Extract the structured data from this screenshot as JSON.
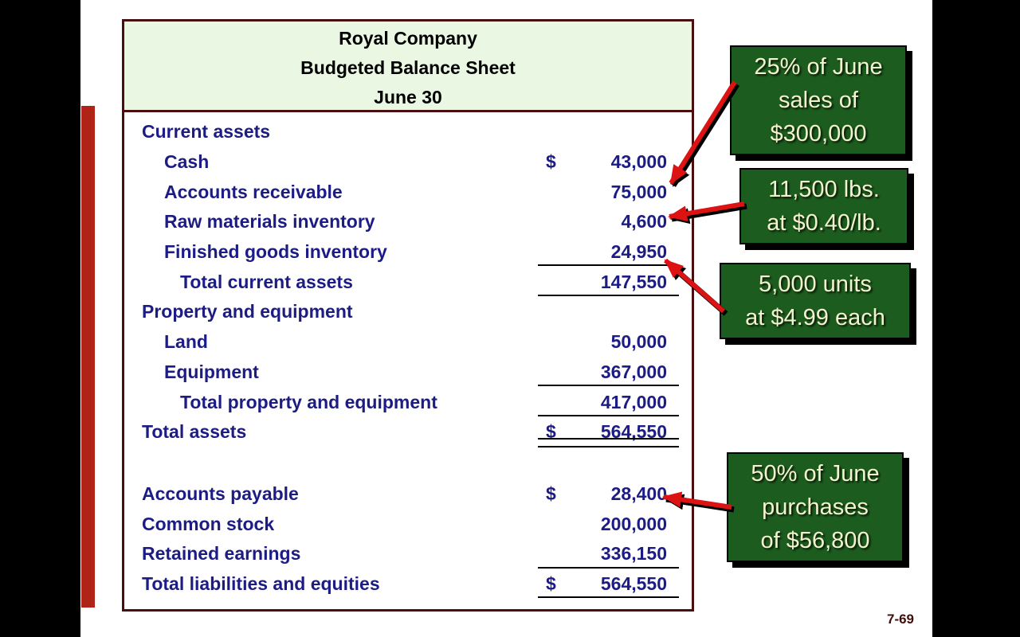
{
  "page": {
    "number_label": "7-69"
  },
  "table": {
    "title_lines": [
      "Royal Company",
      "Budgeted Balance Sheet",
      "June 30"
    ],
    "rows": [
      {
        "label": "Current assets",
        "indent": 0,
        "dollar": "",
        "value": "",
        "underline": "none"
      },
      {
        "label": "Cash",
        "indent": 1,
        "dollar": "$",
        "value": "43,000",
        "underline": "none"
      },
      {
        "label": "Accounts receivable",
        "indent": 1,
        "dollar": "",
        "value": "75,000",
        "underline": "none"
      },
      {
        "label": "Raw materials inventory",
        "indent": 1,
        "dollar": "",
        "value": "4,600",
        "underline": "none"
      },
      {
        "label": "Finished goods inventory",
        "indent": 1,
        "dollar": "",
        "value": "24,950",
        "underline": "single"
      },
      {
        "label": "Total current assets",
        "indent": 2,
        "dollar": "",
        "value": "147,550",
        "underline": "single"
      },
      {
        "label": "Property and equipment",
        "indent": 0,
        "dollar": "",
        "value": "",
        "underline": "none"
      },
      {
        "label": "Land",
        "indent": 1,
        "dollar": "",
        "value": "50,000",
        "underline": "none"
      },
      {
        "label": "Equipment",
        "indent": 1,
        "dollar": "",
        "value": "367,000",
        "underline": "single"
      },
      {
        "label": "Total property and equipment",
        "indent": 2,
        "dollar": "",
        "value": "417,000",
        "underline": "single"
      },
      {
        "label": "Total assets",
        "indent": 0,
        "dollar": "$",
        "value": "564,550",
        "underline": "double"
      },
      {
        "spacer": true
      },
      {
        "label": "Accounts payable",
        "indent": 0,
        "dollar": "$",
        "value": "28,400",
        "underline": "none"
      },
      {
        "label": "Common stock",
        "indent": 0,
        "dollar": "",
        "value": "200,000",
        "underline": "none"
      },
      {
        "label": "Retained earnings",
        "indent": 0,
        "dollar": "",
        "value": "336,150",
        "underline": "single"
      },
      {
        "label": "Total liabilities and equities",
        "indent": 0,
        "dollar": "$",
        "value": "564,550",
        "underline": "single"
      }
    ]
  },
  "callouts": [
    {
      "lines": [
        "25% of June",
        "sales of",
        "$300,000"
      ],
      "icon": "red-arrow",
      "points_to_value": "75,000"
    },
    {
      "lines": [
        "11,500 lbs.",
        "at $0.40/lb."
      ],
      "icon": "red-arrow",
      "points_to_value": "4,600"
    },
    {
      "lines": [
        "5,000 units",
        "at $4.99 each"
      ],
      "icon": "red-arrow",
      "points_to_value": "24,950"
    },
    {
      "lines": [
        "50% of June",
        "purchases",
        "of $56,800"
      ],
      "icon": "red-arrow",
      "points_to_value": "28,400"
    }
  ],
  "colors": {
    "callout_bg": "#1c5c1e",
    "callout_text": "#f3f3cd",
    "table_text": "#1c1c84",
    "table_border": "#4a0e0e",
    "header_bg": "#e9f7e3",
    "arrow": "#dd1212",
    "accent_bar": "#b02417"
  }
}
